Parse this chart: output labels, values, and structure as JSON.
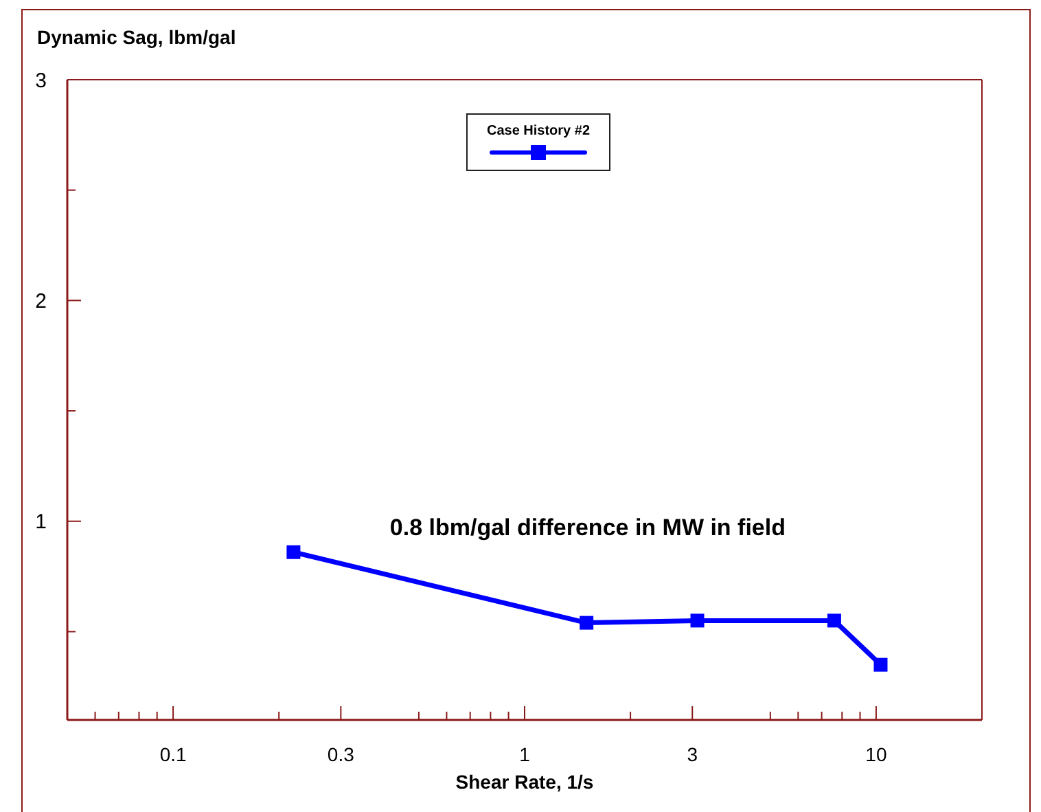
{
  "chart_data": {
    "type": "line",
    "ylabel": "Dynamic Sag, lbm/gal",
    "xlabel": "Shear Rate, 1/s",
    "log": "x",
    "xlim": [
      0.05,
      20
    ],
    "ylim": [
      0.1,
      3
    ],
    "xticks": [
      {
        "value": 0.06,
        "label": null
      },
      {
        "value": 0.07,
        "label": null
      },
      {
        "value": 0.08,
        "label": null
      },
      {
        "value": 0.09,
        "label": null
      },
      0.1,
      {
        "value": 0.2,
        "label": null
      },
      0.3,
      {
        "value": 0.5,
        "label": null
      },
      {
        "value": 0.6,
        "label": null
      },
      {
        "value": 0.7,
        "label": null
      },
      {
        "value": 0.8,
        "label": null
      },
      {
        "value": 0.9,
        "label": null
      },
      1,
      {
        "value": 2,
        "label": null
      },
      3,
      {
        "value": 5,
        "label": null
      },
      {
        "value": 6,
        "label": null
      },
      {
        "value": 7,
        "label": null
      },
      {
        "value": 8,
        "label": null
      },
      {
        "value": 9,
        "label": null
      },
      10
    ],
    "yticks": [
      {
        "value": 0.5,
        "label": null
      },
      1,
      {
        "value": 1.5,
        "label": null
      },
      2,
      {
        "value": 2.5,
        "label": null
      },
      3
    ],
    "x": [
      0.22,
      1.5,
      3.1,
      7.6,
      10.3
    ],
    "series": [
      {
        "name": "Case History #2",
        "color": "#0000ff",
        "values": [
          0.86,
          0.54,
          0.55,
          0.55,
          0.35
        ]
      }
    ],
    "marker": "square",
    "line_style": "solid",
    "legend": "top",
    "grid": false,
    "annotations": [
      "0.8 lbm/gal difference in MW in field"
    ]
  }
}
